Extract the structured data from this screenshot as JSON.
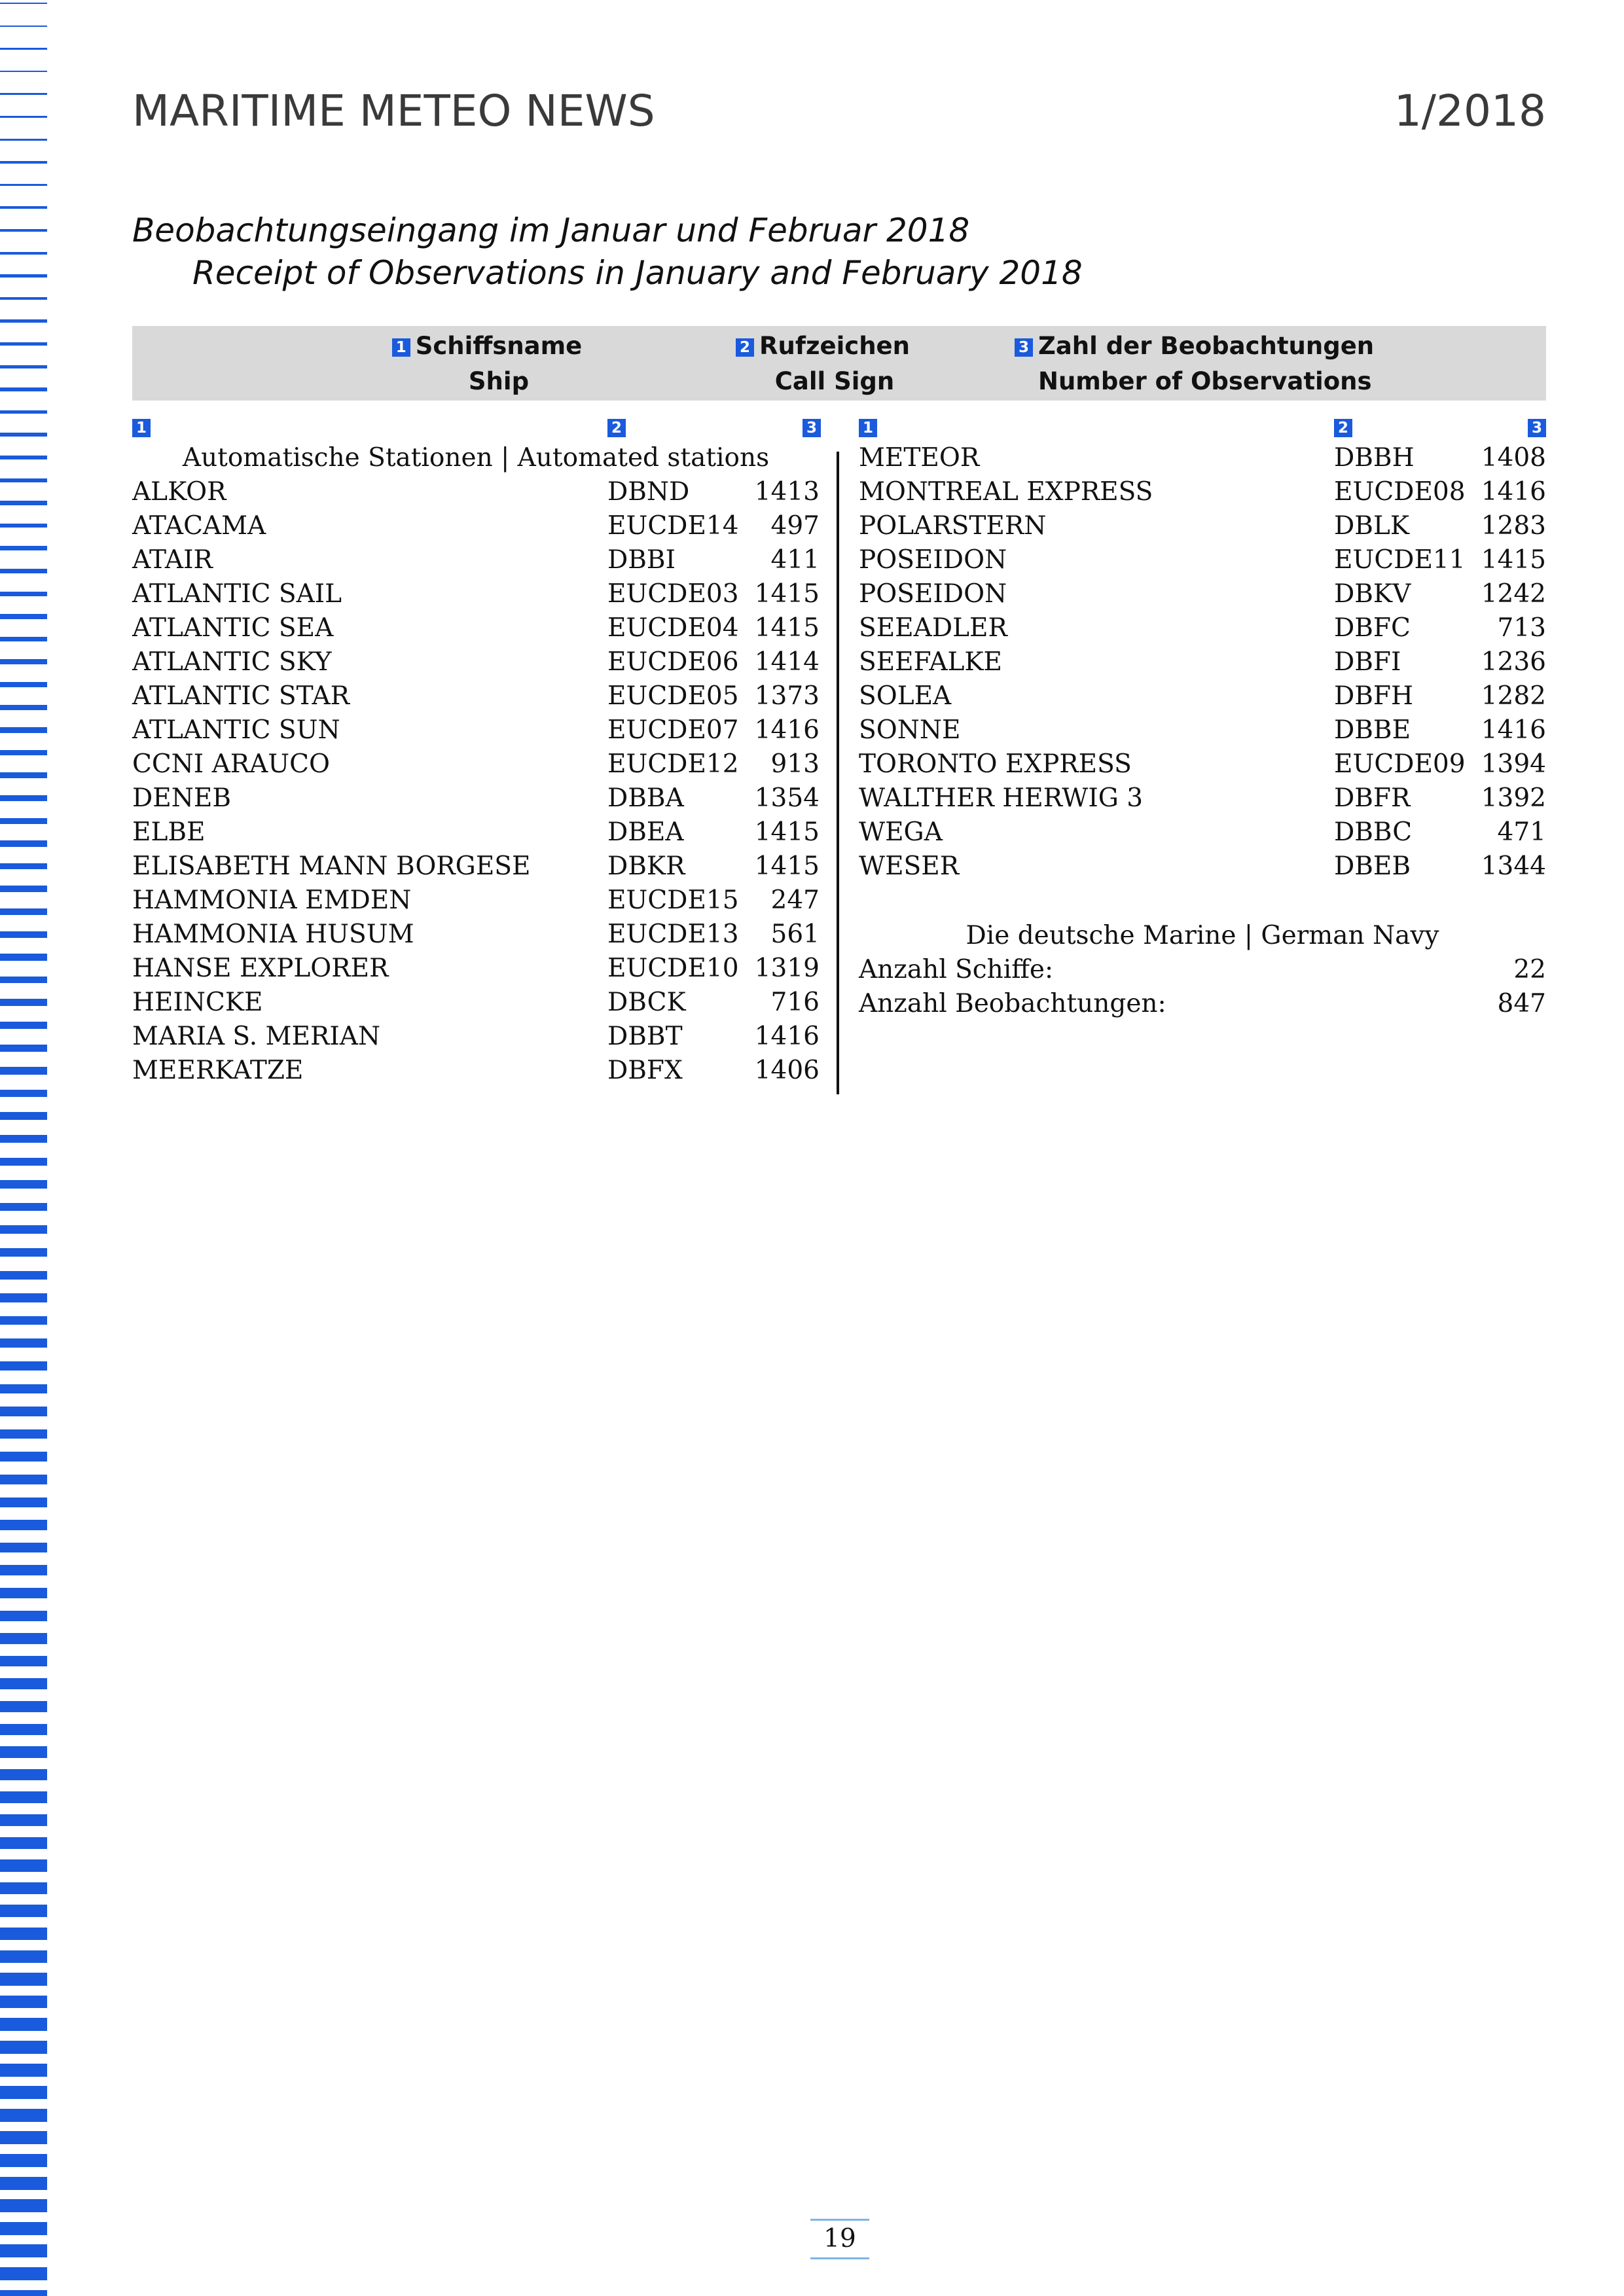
{
  "header": {
    "title": "MARITIME METEO NEWS",
    "issue": "1/2018"
  },
  "headline": {
    "german": "Beobachtungseingang im Januar und Februar 2018",
    "english": "Receipt of Observations in January and February 2018"
  },
  "columns": [
    {
      "badge": "1",
      "label_de": "Schiffsname",
      "label_en": "Ship"
    },
    {
      "badge": "2",
      "label_de": "Rufzeichen",
      "label_en": "Call Sign"
    },
    {
      "badge": "3",
      "label_de": "Zahl der Beobachtungen",
      "label_en": "Number of Observations"
    }
  ],
  "marker_labels": [
    "1",
    "2",
    "3"
  ],
  "automated_section_heading": "Automatische Stationen | Automated stations",
  "left_ships": [
    {
      "name": "ALKOR",
      "call_sign": "DBND",
      "count": "1413"
    },
    {
      "name": "ATACAMA",
      "call_sign": "EUCDE14",
      "count": "497"
    },
    {
      "name": "ATAIR",
      "call_sign": "DBBI",
      "count": "411"
    },
    {
      "name": "ATLANTIC SAIL",
      "call_sign": "EUCDE03",
      "count": "1415"
    },
    {
      "name": "ATLANTIC SEA",
      "call_sign": "EUCDE04",
      "count": "1415"
    },
    {
      "name": "ATLANTIC SKY",
      "call_sign": "EUCDE06",
      "count": "1414"
    },
    {
      "name": "ATLANTIC STAR",
      "call_sign": "EUCDE05",
      "count": "1373"
    },
    {
      "name": "ATLANTIC SUN",
      "call_sign": "EUCDE07",
      "count": "1416"
    },
    {
      "name": "CCNI ARAUCO",
      "call_sign": "EUCDE12",
      "count": "913"
    },
    {
      "name": "DENEB",
      "call_sign": "DBBA",
      "count": "1354"
    },
    {
      "name": "ELBE",
      "call_sign": "DBEA",
      "count": "1415"
    },
    {
      "name": "ELISABETH MANN BORGESE",
      "call_sign": "DBKR",
      "count": "1415"
    },
    {
      "name": "HAMMONIA EMDEN",
      "call_sign": "EUCDE15",
      "count": "247"
    },
    {
      "name": "HAMMONIA HUSUM",
      "call_sign": "EUCDE13",
      "count": "561"
    },
    {
      "name": "HANSE EXPLORER",
      "call_sign": "EUCDE10",
      "count": "1319"
    },
    {
      "name": "HEINCKE",
      "call_sign": "DBCK",
      "count": "716"
    },
    {
      "name": "MARIA S. MERIAN",
      "call_sign": "DBBT",
      "count": "1416"
    },
    {
      "name": "MEERKATZE",
      "call_sign": "DBFX",
      "count": "1406"
    }
  ],
  "right_ships": [
    {
      "name": "METEOR",
      "call_sign": "DBBH",
      "count": "1408"
    },
    {
      "name": "MONTREAL EXPRESS",
      "call_sign": "EUCDE08",
      "count": "1416"
    },
    {
      "name": "POLARSTERN",
      "call_sign": "DBLK",
      "count": "1283"
    },
    {
      "name": "POSEIDON",
      "call_sign": "EUCDE11",
      "count": "1415"
    },
    {
      "name": "POSEIDON",
      "call_sign": "DBKV",
      "count": "1242"
    },
    {
      "name": "SEEADLER",
      "call_sign": "DBFC",
      "count": "713"
    },
    {
      "name": "SEEFALKE",
      "call_sign": "DBFI",
      "count": "1236"
    },
    {
      "name": "SOLEA",
      "call_sign": "DBFH",
      "count": "1282"
    },
    {
      "name": "SONNE",
      "call_sign": "DBBE",
      "count": "1416"
    },
    {
      "name": "TORONTO EXPRESS",
      "call_sign": "EUCDE09",
      "count": "1394"
    },
    {
      "name": "WALTHER HERWIG 3",
      "call_sign": "DBFR",
      "count": "1392"
    },
    {
      "name": "WEGA",
      "call_sign": "DBBC",
      "count": "471"
    },
    {
      "name": "WESER",
      "call_sign": "DBEB",
      "count": "1344"
    }
  ],
  "navy": {
    "heading": "Die deutsche Marine | German Navy",
    "ships_label": "Anzahl Schiffe:",
    "ships_value": "22",
    "observations_label": "Anzahl Beobachtungen:",
    "observations_value": "847"
  },
  "footer": {
    "page_number": "19"
  },
  "colors": {
    "accent_blue": "#1a5adc",
    "header_band": "#d9d9d9",
    "page_number_rule": "#7fb3e6"
  }
}
